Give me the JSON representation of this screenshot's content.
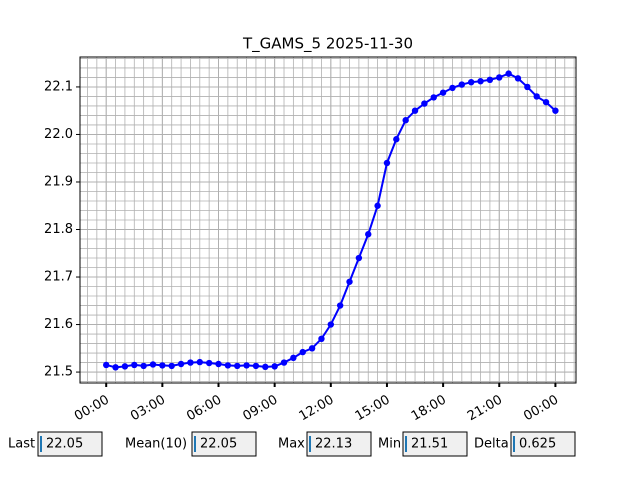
{
  "chart_data": {
    "type": "line",
    "title": "T_GAMS_5 2025-11-30",
    "x": [
      0,
      0.5,
      1,
      1.5,
      2,
      2.5,
      3,
      3.5,
      4,
      4.5,
      5,
      5.5,
      6,
      6.5,
      7,
      7.5,
      8,
      8.5,
      9,
      9.5,
      10,
      10.5,
      11,
      11.5,
      12,
      12.5,
      13,
      13.5,
      14,
      14.5,
      15,
      15.5,
      16,
      16.5,
      17,
      17.5,
      18,
      18.5,
      19,
      19.5,
      20,
      20.5,
      21,
      21.5,
      22,
      22.5,
      23,
      23.5,
      24
    ],
    "series": [
      {
        "color": "#0000ff",
        "values": [
          21.515,
          21.51,
          21.512,
          21.515,
          21.513,
          21.516,
          21.514,
          21.513,
          21.517,
          21.52,
          21.521,
          21.519,
          21.517,
          21.514,
          21.513,
          21.514,
          21.513,
          21.511,
          21.512,
          21.52,
          21.53,
          21.542,
          21.55,
          21.57,
          21.6,
          21.64,
          21.69,
          21.74,
          21.79,
          21.85,
          21.94,
          21.99,
          22.03,
          22.05,
          22.065,
          22.078,
          22.088,
          22.098,
          22.105,
          22.11,
          22.112,
          22.115,
          22.12,
          22.128,
          22.118,
          22.1,
          22.08,
          22.068,
          22.05
        ]
      }
    ],
    "xlim": [
      -1.4,
      25.1
    ],
    "xticks": [
      {
        "value": 0,
        "label": "00:00"
      },
      {
        "value": 3,
        "label": "03:00"
      },
      {
        "value": 6,
        "label": "06:00"
      },
      {
        "value": 9,
        "label": "09:00"
      },
      {
        "value": 12,
        "label": "12:00"
      },
      {
        "value": 15,
        "label": "15:00"
      },
      {
        "value": 18,
        "label": "18:00"
      },
      {
        "value": 21,
        "label": "21:00"
      },
      {
        "value": 24,
        "label": "00:00"
      }
    ],
    "ylim": [
      21.477,
      22.163
    ],
    "yticks": [
      21.5,
      21.6,
      21.7,
      21.8,
      21.9,
      {
        "value": 22,
        "label": "22.0"
      },
      22.1
    ],
    "grid": true,
    "minor_grid": true
  },
  "stats": [
    {
      "label": "Last",
      "value": 22.05
    },
    {
      "label": "Mean(10)",
      "value": 22.05
    },
    {
      "label": "Max",
      "value": 22.13
    },
    {
      "label": "Min",
      "value": 21.51
    },
    {
      "label": "Delta",
      "value": 0.625
    }
  ]
}
